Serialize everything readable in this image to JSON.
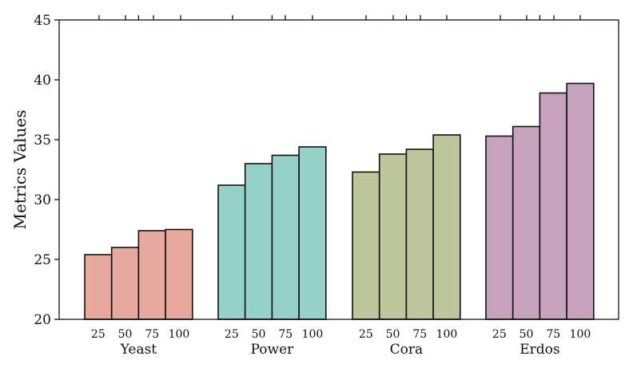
{
  "chart_data": {
    "type": "bar",
    "title": "",
    "xlabel": "",
    "ylabel": "Metrics Values",
    "ylim": [
      20,
      45
    ],
    "yticks": [
      20,
      25,
      30,
      35,
      40,
      45
    ],
    "grid": false,
    "legend": "none",
    "groups": [
      {
        "name": "Yeast",
        "color": "#e8aa9f",
        "sub_categories": [
          "25",
          "50",
          "75",
          "100"
        ],
        "values": [
          25.4,
          26.0,
          27.4,
          27.5
        ]
      },
      {
        "name": "Power",
        "color": "#96d1c9",
        "sub_categories": [
          "25",
          "50",
          "75",
          "100"
        ],
        "values": [
          31.2,
          33.0,
          33.7,
          34.4
        ]
      },
      {
        "name": "Cora",
        "color": "#bcc59c",
        "sub_categories": [
          "25",
          "50",
          "75",
          "100"
        ],
        "values": [
          32.3,
          33.8,
          34.2,
          35.4
        ]
      },
      {
        "name": "Erdos",
        "color": "#c6a2bc",
        "sub_categories": [
          "25",
          "50",
          "75",
          "100"
        ],
        "values": [
          35.3,
          36.1,
          38.9,
          39.7
        ]
      }
    ]
  }
}
